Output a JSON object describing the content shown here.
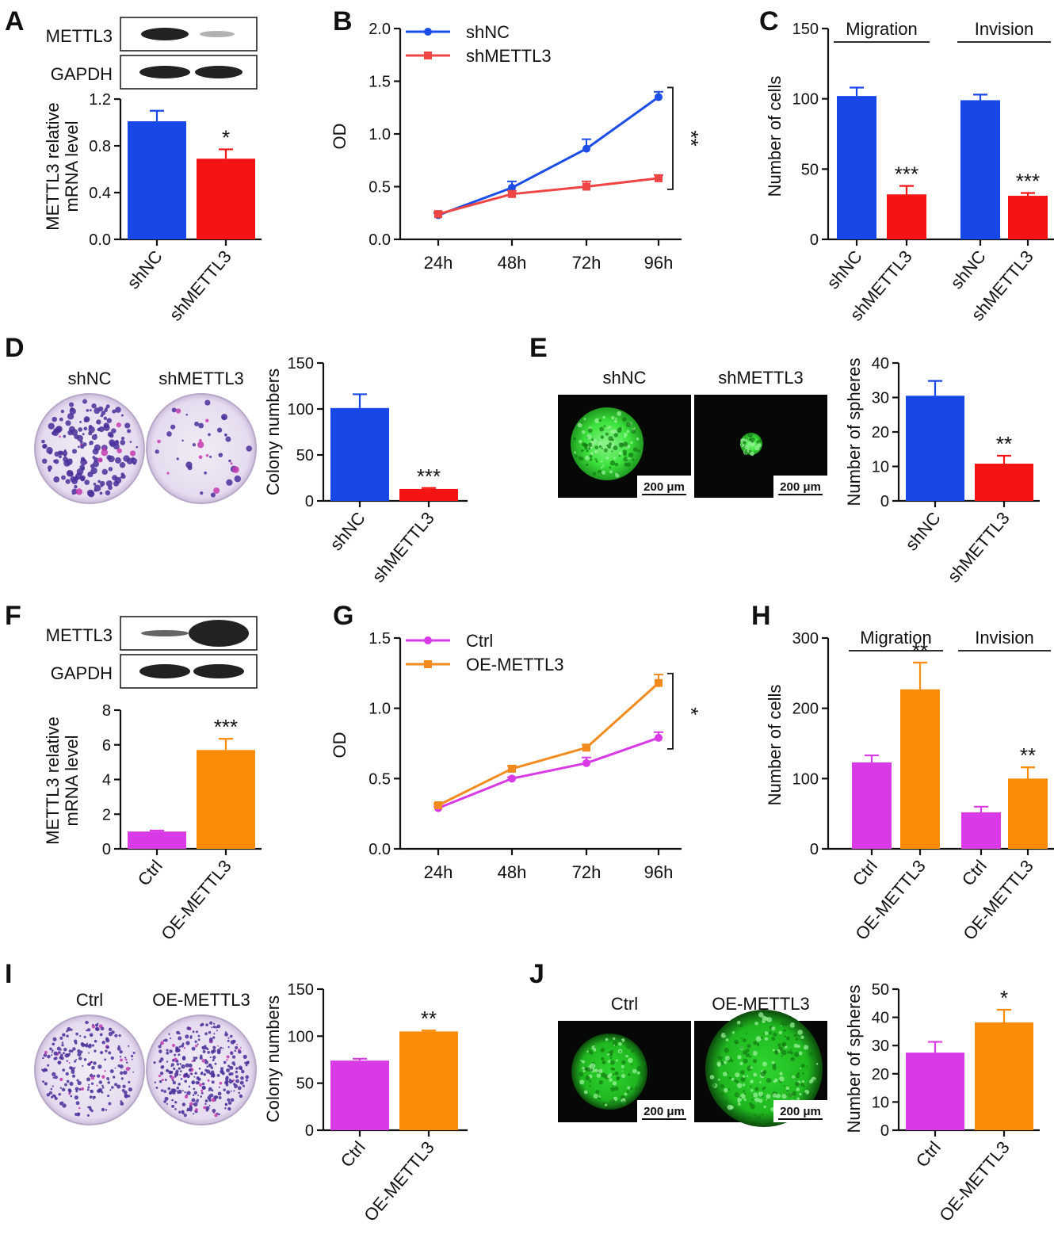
{
  "colors": {
    "blue": "#1747e6",
    "red": "#f41414",
    "magenta": "#d83ae6",
    "orange": "#fb8c0a",
    "line_blue": "#1b4ee6",
    "line_red": "#f04545",
    "line_magenta": "#d83ae6",
    "line_orange": "#f28a1e",
    "blot_band": "#222222",
    "micro_bg": "#060806",
    "sphere_green": "#39e639",
    "dish_bg": "#ebe3f0",
    "colony": "#4a2f9a"
  },
  "panels": {
    "A": {
      "letter": "A",
      "blot": {
        "rows": [
          "METTL3",
          "GAPDH"
        ]
      },
      "chart_data": {
        "type": "bar",
        "categories": [
          "shNC",
          "shMETTL3"
        ],
        "values": [
          1.01,
          0.69
        ],
        "errors": [
          0.09,
          0.08
        ],
        "annotations": [
          "",
          "*"
        ],
        "colors": [
          "blue",
          "red"
        ],
        "ylabel": [
          "METTL3 relative",
          "mRNA level"
        ],
        "ylim": [
          0,
          1.2
        ],
        "yticks": [
          "0.0",
          "0.4",
          "0.8",
          "1.2"
        ]
      }
    },
    "B": {
      "letter": "B",
      "chart_data": {
        "type": "line",
        "x": [
          "24h",
          "48h",
          "72h",
          "96h"
        ],
        "series": [
          {
            "name": "shNC",
            "values": [
              0.23,
              0.49,
              0.86,
              1.35
            ],
            "errors": [
              0.02,
              0.06,
              0.09,
              0.05
            ],
            "color": "line_blue",
            "marker": "circle"
          },
          {
            "name": "shMETTL3",
            "values": [
              0.24,
              0.43,
              0.5,
              0.58
            ],
            "errors": [
              0.02,
              0.03,
              0.05,
              0.03
            ],
            "color": "line_red",
            "marker": "square"
          }
        ],
        "ylabel": "OD",
        "ylim": [
          0,
          2.0
        ],
        "yticks": [
          "0.0",
          "0.5",
          "1.0",
          "1.5",
          "2.0"
        ],
        "annotation": "**"
      }
    },
    "C": {
      "letter": "C",
      "chart_data": {
        "type": "bar",
        "groups": [
          "Migration",
          "Invision"
        ],
        "categories": [
          "shNC",
          "shMETTL3",
          "shNC",
          "shMETTL3"
        ],
        "values": [
          102,
          32,
          99,
          31
        ],
        "errors": [
          6,
          6,
          4,
          2
        ],
        "annotations": [
          "",
          "***",
          "",
          "***"
        ],
        "colors": [
          "blue",
          "red",
          "blue",
          "red"
        ],
        "ylabel": "Number of cells",
        "ylim": [
          0,
          150
        ],
        "yticks": [
          "0",
          "50",
          "100",
          "150"
        ]
      }
    },
    "D": {
      "letter": "D",
      "dish_labels": [
        "shNC",
        "shMETTL3"
      ],
      "chart_data": {
        "type": "bar",
        "categories": [
          "shNC",
          "shMETTL3"
        ],
        "values": [
          101,
          13
        ],
        "errors": [
          15,
          1
        ],
        "annotations": [
          "",
          "***"
        ],
        "colors": [
          "blue",
          "red"
        ],
        "ylabel": "Colony numbers",
        "ylim": [
          0,
          150
        ],
        "yticks": [
          "0",
          "50",
          "100",
          "150"
        ]
      }
    },
    "E": {
      "letter": "E",
      "image_labels": [
        "shNC",
        "shMETTL3"
      ],
      "scale_bar": "200 μm",
      "chart_data": {
        "type": "bar",
        "categories": [
          "shNC",
          "shMETTL3"
        ],
        "values": [
          30.5,
          10.8
        ],
        "errors": [
          4.3,
          2.3
        ],
        "annotations": [
          "",
          "**"
        ],
        "colors": [
          "blue",
          "red"
        ],
        "ylabel": "Number of spheres",
        "ylim": [
          0,
          40
        ],
        "yticks": [
          "0",
          "10",
          "20",
          "30",
          "40"
        ]
      }
    },
    "F": {
      "letter": "F",
      "blot": {
        "rows": [
          "METTL3",
          "GAPDH"
        ]
      },
      "chart_data": {
        "type": "bar",
        "categories": [
          "Ctrl",
          "OE-METTL3"
        ],
        "values": [
          1.0,
          5.7
        ],
        "errors": [
          0.05,
          0.65
        ],
        "annotations": [
          "",
          "***"
        ],
        "colors": [
          "magenta",
          "orange"
        ],
        "ylabel": [
          "METTL3 relative",
          "mRNA level"
        ],
        "ylim": [
          0,
          8
        ],
        "yticks": [
          "0",
          "2",
          "4",
          "6",
          "8"
        ]
      }
    },
    "G": {
      "letter": "G",
      "chart_data": {
        "type": "line",
        "x": [
          "24h",
          "48h",
          "72h",
          "96h"
        ],
        "series": [
          {
            "name": "Ctrl",
            "values": [
              0.29,
              0.5,
              0.61,
              0.79
            ],
            "errors": [
              0.01,
              0.01,
              0.04,
              0.04
            ],
            "color": "line_magenta",
            "marker": "circle"
          },
          {
            "name": "OE-METTL3",
            "values": [
              0.31,
              0.57,
              0.72,
              1.18
            ],
            "errors": [
              0.01,
              0.02,
              0.02,
              0.06
            ],
            "color": "line_orange",
            "marker": "square"
          }
        ],
        "ylabel": "OD",
        "ylim": [
          0,
          1.5
        ],
        "yticks": [
          "0.0",
          "0.5",
          "1.0",
          "1.5"
        ],
        "annotation": "*"
      }
    },
    "H": {
      "letter": "H",
      "chart_data": {
        "type": "bar",
        "groups": [
          "Migration",
          "Invision"
        ],
        "categories": [
          "Ctrl",
          "OE-METTL3",
          "Ctrl",
          "OE-METTL3"
        ],
        "values": [
          123,
          227,
          52,
          100
        ],
        "errors": [
          10,
          38,
          8,
          16
        ],
        "annotations": [
          "",
          "**",
          "",
          "**"
        ],
        "colors": [
          "magenta",
          "orange",
          "magenta",
          "orange"
        ],
        "ylabel": "Number of cells",
        "ylim": [
          0,
          300
        ],
        "yticks": [
          "0",
          "100",
          "200",
          "300"
        ]
      }
    },
    "I": {
      "letter": "I",
      "dish_labels": [
        "Ctrl",
        "OE-METTL3"
      ],
      "chart_data": {
        "type": "bar",
        "categories": [
          "Ctrl",
          "OE-METTL3"
        ],
        "values": [
          74,
          105
        ],
        "errors": [
          2,
          1
        ],
        "annotations": [
          "",
          "**"
        ],
        "colors": [
          "magenta",
          "orange"
        ],
        "ylabel": "Colony numbers",
        "ylim": [
          0,
          150
        ],
        "yticks": [
          "0",
          "50",
          "100",
          "150"
        ]
      }
    },
    "J": {
      "letter": "J",
      "image_labels": [
        "Ctrl",
        "OE-METTL3"
      ],
      "scale_bar": "200 μm",
      "chart_data": {
        "type": "bar",
        "categories": [
          "Ctrl",
          "OE-METTL3"
        ],
        "values": [
          27.5,
          38.2
        ],
        "errors": [
          3.8,
          4.5
        ],
        "annotations": [
          "",
          "*"
        ],
        "colors": [
          "magenta",
          "orange"
        ],
        "ylabel": "Number of spheres",
        "ylim": [
          0,
          50
        ],
        "yticks": [
          "0",
          "10",
          "20",
          "30",
          "40",
          "50"
        ]
      }
    }
  }
}
